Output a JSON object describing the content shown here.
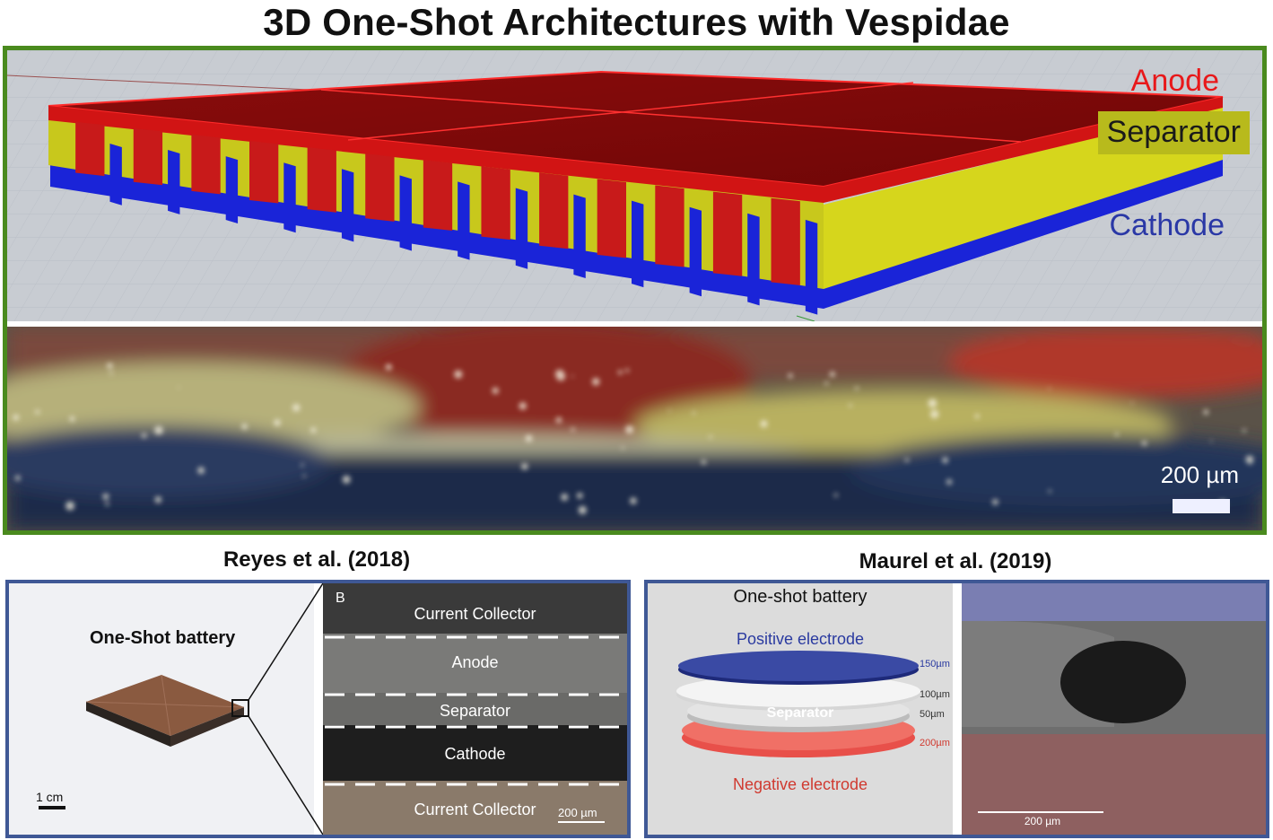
{
  "title": "3D One-Shot Architectures with Vespidae",
  "render": {
    "labels": {
      "anode": "Anode",
      "separator": "Separator",
      "cathode": "Cathode"
    },
    "colors": {
      "anode": "#e8181a",
      "separator": "#c8c81e",
      "cathode": "#1a24d8",
      "frame": "#4a8a1e"
    }
  },
  "photo": {
    "scale_bar": "200 µm"
  },
  "reyes": {
    "caption": "Reyes et al. (2018)",
    "battery_label": "One-Shot battery",
    "scale": "1 cm",
    "panel_letter": "B",
    "layers": [
      "Current Collector",
      "Anode",
      "Separator",
      "Cathode",
      "Current Collector"
    ],
    "micro_scale": "200 µm"
  },
  "maurel": {
    "caption": "Maurel et al. (2019)",
    "diagram_title": "One-shot battery",
    "positive": "Positive electrode",
    "separator": "Separator",
    "negative": "Negative electrode",
    "thickness": [
      "150µm",
      "100µm",
      "50µm",
      "200µm"
    ],
    "sem_scale": "200 µm"
  }
}
